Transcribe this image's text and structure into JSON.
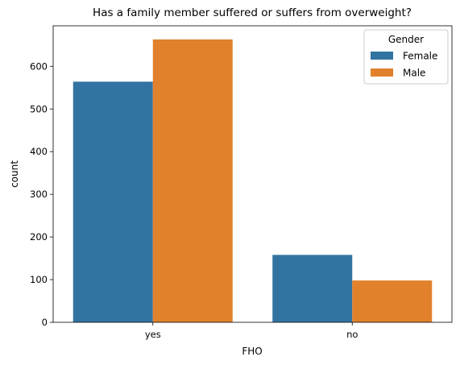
{
  "chart_data": {
    "type": "bar",
    "title": "Has a family member suffered or suffers from overweight?",
    "xlabel": "FHO",
    "ylabel": "count",
    "categories": [
      "yes",
      "no"
    ],
    "series": [
      {
        "name": "Female",
        "values": [
          564,
          158
        ],
        "color": "#3274a1"
      },
      {
        "name": "Male",
        "values": [
          663,
          98
        ],
        "color": "#e1812c"
      }
    ],
    "ylim": [
      0,
      695
    ],
    "yticks": [
      0,
      100,
      200,
      300,
      400,
      500,
      600
    ],
    "legend": {
      "title": "Gender",
      "placement": "top-right"
    },
    "grid": false
  }
}
